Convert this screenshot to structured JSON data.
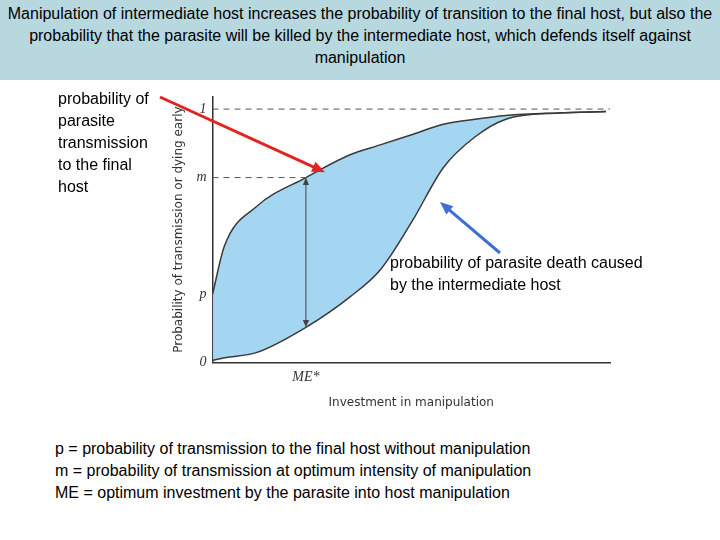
{
  "title": "Manipulation of intermediate host increases the probability of transition to the final host, but also the probability that the parasite will be killed by the intermediate host, which defends itself against manipulation",
  "caption": [
    "p = probability of transmission to the final host without manipulation",
    "m = probability of transmission at optimum intensity of manipulation",
    "ME = optimum investment by the parasite into host manipulation"
  ],
  "chart_data": {
    "type": "line",
    "x_label": "Investment in manipulation",
    "y_label": "Probability of transmission or dying early",
    "x": [
      0,
      0.3,
      1.1,
      2.35,
      3.46,
      4.24,
      5.03,
      5.81,
      6.6,
      7.38,
      8.7,
      9.9
    ],
    "series": [
      {
        "name": "probability of parasite transmission to the final host",
        "color": "#3a3a3a",
        "values": [
          0.27,
          0.46,
          0.615,
          0.73,
          0.82,
          0.86,
          0.9,
          0.94,
          0.96,
          0.975,
          0.985,
          0.99
        ]
      },
      {
        "name": "probability of parasite death caused by the intermediate host",
        "color": "#3a3a3a",
        "values": [
          0.01,
          0.02,
          0.04,
          0.14,
          0.26,
          0.37,
          0.56,
          0.77,
          0.89,
          0.96,
          0.985,
          0.99
        ]
      }
    ],
    "xlim": [
      0,
      10
    ],
    "ylim": [
      0,
      1.05
    ],
    "xticks": [
      {
        "value": 2.35,
        "label": "ME*"
      }
    ],
    "yticks": [
      0,
      {
        "value": 0.27,
        "label": "p"
      },
      {
        "value": 0.73,
        "label": "m"
      },
      1
    ],
    "grid": false
  }
}
